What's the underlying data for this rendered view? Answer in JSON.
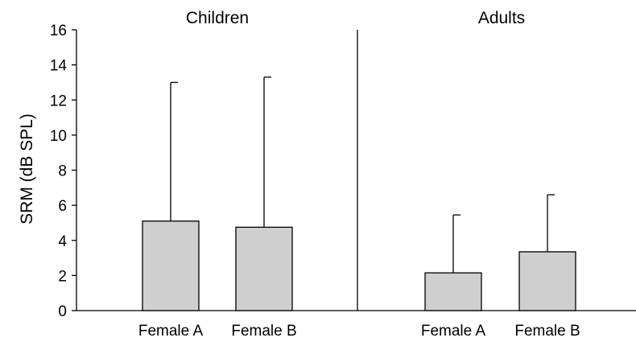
{
  "chart_data": {
    "type": "bar",
    "ylabel": "SRM (dB SPL)",
    "ylim": [
      0,
      16
    ],
    "yticks": [
      0,
      2,
      4,
      6,
      8,
      10,
      12,
      14,
      16
    ],
    "grid": false,
    "colors": {
      "bar": "#cfcfcf",
      "stroke": "#000000"
    },
    "panels": [
      {
        "title": "Children",
        "categories": [
          "Female A",
          "Female B"
        ],
        "values": [
          5.1,
          4.75
        ],
        "error_upper": [
          13.0,
          13.3
        ]
      },
      {
        "title": "Adults",
        "categories": [
          "Female A",
          "Female B"
        ],
        "values": [
          2.15,
          3.35
        ],
        "error_upper": [
          5.45,
          6.6
        ]
      }
    ]
  }
}
